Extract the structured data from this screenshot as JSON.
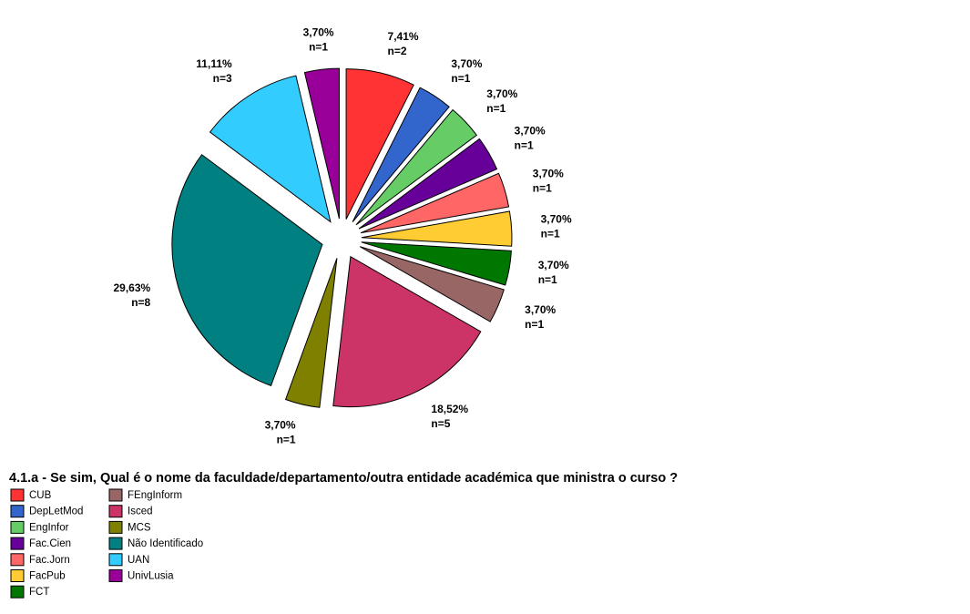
{
  "chart_data": {
    "type": "pie",
    "title": "4.1.a - Se sim, Qual é o nome da faculdade/departamento/outra entidade académica que ministra o curso ?",
    "categories": [
      "CUB",
      "DepLetMod",
      "EngInfor",
      "Fac.Cien",
      "Fac.Jorn",
      "FacPub",
      "FCT",
      "FEngInform",
      "Isced",
      "MCS",
      "Não Identificado",
      "UAN",
      "UnivLusia"
    ],
    "values": [
      7.41,
      3.7,
      3.7,
      3.7,
      3.7,
      3.7,
      3.7,
      3.7,
      18.52,
      3.7,
      29.63,
      11.11,
      3.7
    ],
    "value_labels": [
      "7,41%",
      "3,70%",
      "3,70%",
      "3,70%",
      "3,70%",
      "3,70%",
      "3,70%",
      "3,70%",
      "18,52%",
      "3,70%",
      "29,63%",
      "11,11%",
      "3,70%"
    ],
    "n_labels": [
      "n=2",
      "n=1",
      "n=1",
      "n=1",
      "n=1",
      "n=1",
      "n=1",
      "n=1",
      "n=5",
      "n=1",
      "n=8",
      "n=3",
      "n=1"
    ],
    "colors": [
      "#ff3333",
      "#3366cc",
      "#66cc66",
      "#660099",
      "#ff6666",
      "#ffcc33",
      "#007700",
      "#996666",
      "#cc3366",
      "#808000",
      "#008080",
      "#33ccff",
      "#990099"
    ],
    "legend": "bottom-left"
  }
}
